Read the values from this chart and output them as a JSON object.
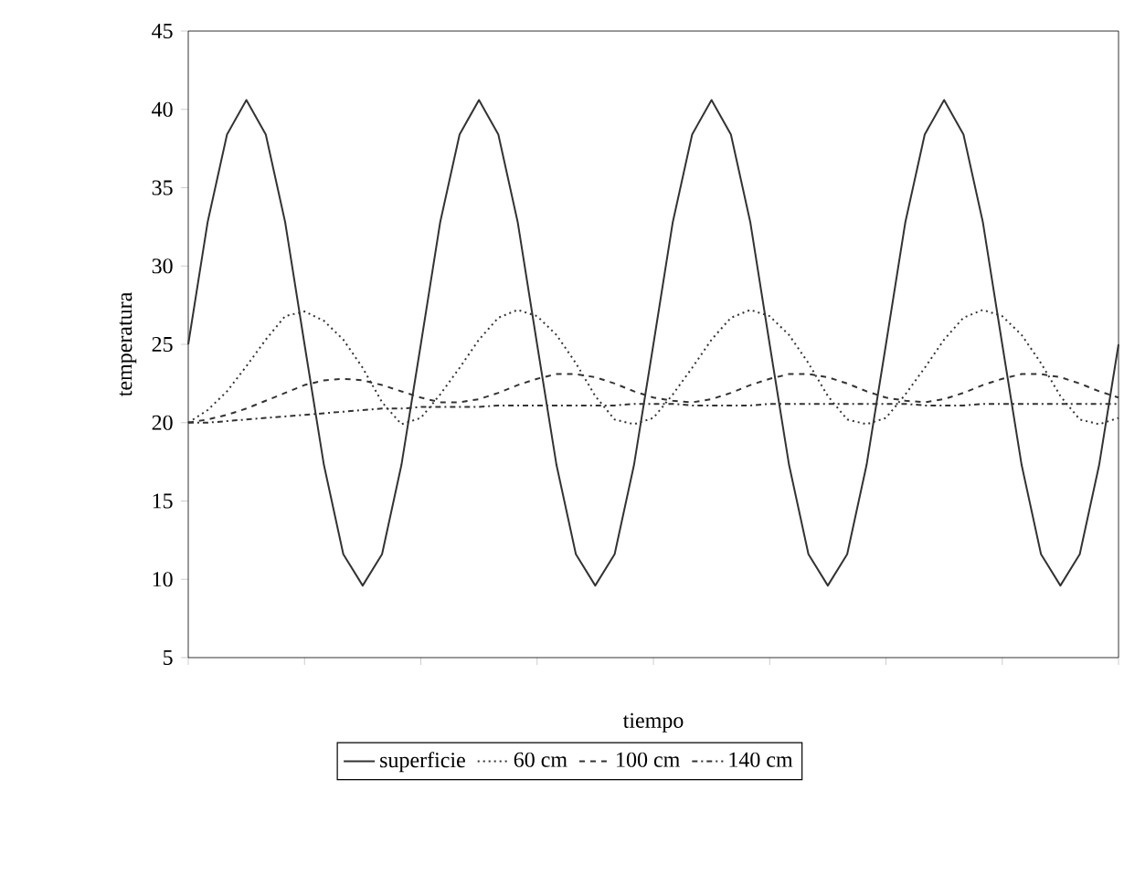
{
  "chart_data": {
    "type": "line",
    "xlabel": "tiempo",
    "ylabel": "temperatura",
    "categories": [
      null,
      null,
      null,
      null,
      null,
      null,
      null,
      null,
      null,
      null,
      null,
      null,
      null,
      null,
      null,
      null,
      null,
      null,
      null,
      null,
      null,
      null,
      null,
      null,
      null,
      null,
      null,
      null,
      null,
      null,
      null,
      null,
      null,
      null,
      null,
      null,
      null,
      null,
      null,
      null,
      null,
      null,
      null,
      null,
      null,
      null,
      null,
      null,
      null
    ],
    "ylim": [
      5,
      45
    ],
    "yticks": [
      5,
      10,
      15,
      20,
      25,
      30,
      35,
      40,
      45
    ],
    "tick_labels": "y",
    "grid": false,
    "legend": "bottom",
    "marker": "none",
    "series": [
      {
        "name": "superficie",
        "color": "#333333",
        "line_style": "solid",
        "values": [
          25,
          32.8,
          38.4,
          40.6,
          38.4,
          32.8,
          25,
          17.3,
          11.6,
          9.6,
          11.6,
          17.3,
          25,
          32.8,
          38.4,
          40.6,
          38.4,
          32.8,
          25,
          17.3,
          11.6,
          9.6,
          11.6,
          17.3,
          25,
          32.8,
          38.4,
          40.6,
          38.4,
          32.8,
          25,
          17.3,
          11.6,
          9.6,
          11.6,
          17.3,
          25,
          32.8,
          38.4,
          40.6,
          38.4,
          32.8,
          25,
          17.3,
          11.6,
          9.6,
          11.6,
          17.3,
          25
        ]
      },
      {
        "name": "60 cm",
        "color": "#333333",
        "line_style": "dotted",
        "values": [
          20,
          20.8,
          22,
          23.6,
          25.3,
          26.8,
          27.1,
          26.5,
          25.3,
          23.5,
          21.3,
          19.9,
          20.3,
          21.8,
          23.5,
          25.3,
          26.7,
          27.2,
          26.8,
          25.6,
          23.8,
          21.7,
          20.2,
          19.9,
          20.3,
          21.8,
          23.5,
          25.3,
          26.7,
          27.2,
          26.8,
          25.6,
          23.8,
          21.7,
          20.2,
          19.9,
          20.3,
          21.8,
          23.5,
          25.3,
          26.7,
          27.2,
          26.8,
          25.6,
          23.8,
          21.7,
          20.2,
          19.9,
          20.3
        ]
      },
      {
        "name": "100 cm",
        "color": "#333333",
        "line_style": "dashed",
        "values": [
          20,
          20.2,
          20.5,
          20.9,
          21.4,
          21.9,
          22.4,
          22.7,
          22.8,
          22.7,
          22.4,
          22,
          21.6,
          21.3,
          21.3,
          21.5,
          21.9,
          22.4,
          22.8,
          23.1,
          23.1,
          22.9,
          22.5,
          22,
          21.6,
          21.4,
          21.3,
          21.5,
          21.9,
          22.4,
          22.8,
          23.1,
          23.1,
          22.9,
          22.5,
          22,
          21.6,
          21.4,
          21.3,
          21.5,
          21.9,
          22.4,
          22.8,
          23.1,
          23.1,
          22.9,
          22.5,
          22,
          21.6
        ]
      },
      {
        "name": "140 cm",
        "color": "#333333",
        "line_style": "dashdot",
        "values": [
          20,
          20,
          20.1,
          20.2,
          20.3,
          20.4,
          20.5,
          20.6,
          20.7,
          20.8,
          20.9,
          20.9,
          21,
          21,
          21,
          21,
          21.1,
          21.1,
          21.1,
          21.1,
          21.1,
          21.1,
          21.1,
          21.2,
          21.2,
          21.2,
          21.1,
          21.1,
          21.1,
          21.1,
          21.2,
          21.2,
          21.2,
          21.2,
          21.2,
          21.2,
          21.2,
          21.2,
          21.1,
          21.1,
          21.1,
          21.2,
          21.2,
          21.2,
          21.2,
          21.2,
          21.2,
          21.2,
          21.2
        ]
      }
    ]
  }
}
